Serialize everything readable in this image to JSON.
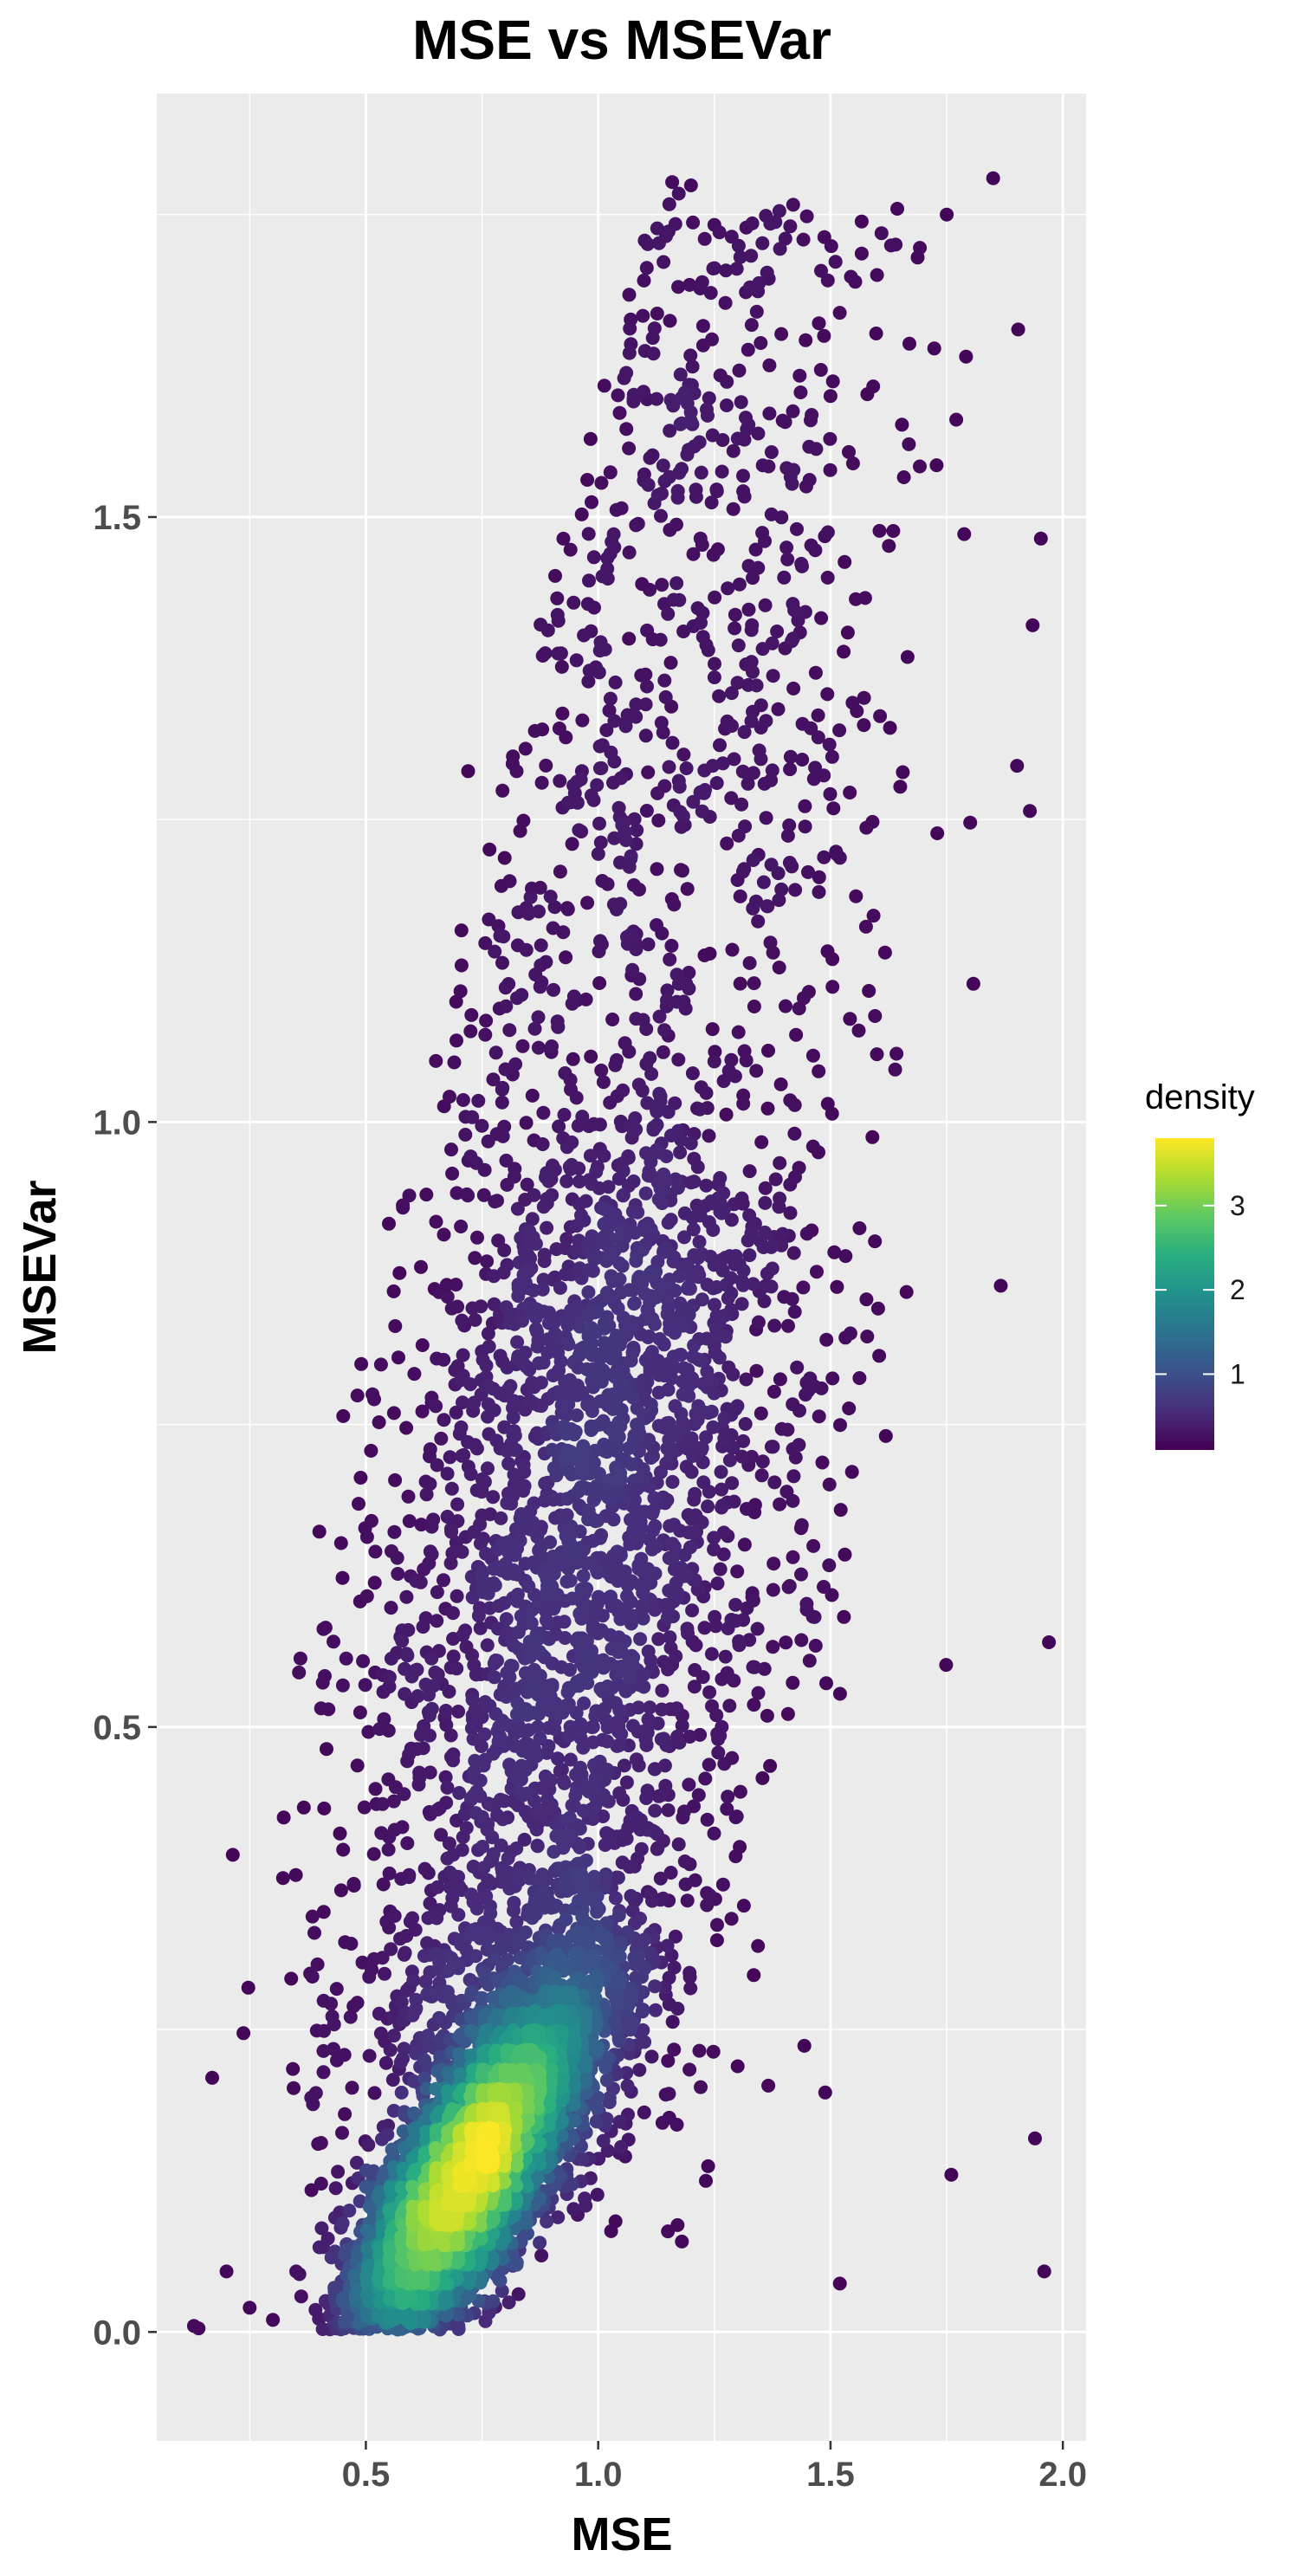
{
  "chart_data": {
    "type": "scatter",
    "title": "MSE vs MSEVar",
    "xlabel": "MSE",
    "ylabel": "MSEVar",
    "xlim": [
      0.05,
      2.05
    ],
    "ylim": [
      -0.09,
      1.85
    ],
    "x_ticks": [
      0.5,
      1.0,
      1.5,
      2.0
    ],
    "x_tick_labels": [
      "0.5",
      "1.0",
      "1.5",
      "2.0"
    ],
    "y_ticks": [
      0.0,
      0.5,
      1.0,
      1.5
    ],
    "y_tick_labels": [
      "0.0",
      "0.5",
      "1.0",
      "1.5"
    ],
    "grid": true,
    "color_by": "density",
    "colorscale": "viridis",
    "legend": {
      "title": "density",
      "position": "right",
      "range": [
        0.1,
        3.8
      ],
      "ticks": [
        1,
        2,
        3
      ],
      "tick_labels": [
        "1",
        "2",
        "3"
      ]
    },
    "n_points": 8000,
    "distribution": {
      "description_fit": "bivariate cloud, dense core near MSE 0.72 / MSEVar 0.13, spreading upward and rightward",
      "core_mean": [
        0.72,
        0.13
      ],
      "max_mse": 1.97,
      "max_msevar": 1.78
    },
    "points_sample": [
      [
        0.13,
        0.005
      ],
      [
        0.14,
        0.003
      ],
      [
        0.2,
        0.05
      ],
      [
        0.25,
        0.02
      ],
      [
        0.3,
        0.01
      ],
      [
        0.35,
        0.05
      ],
      [
        0.4,
        0.07
      ],
      [
        0.45,
        0.09
      ],
      [
        0.5,
        0.12
      ],
      [
        0.55,
        0.1
      ],
      [
        0.6,
        0.12
      ],
      [
        0.65,
        0.14
      ],
      [
        0.7,
        0.13
      ],
      [
        0.72,
        0.12
      ],
      [
        0.75,
        0.15
      ],
      [
        0.8,
        0.2
      ],
      [
        0.85,
        0.25
      ],
      [
        0.9,
        0.3
      ],
      [
        0.95,
        0.35
      ],
      [
        1.0,
        0.45
      ],
      [
        1.05,
        0.55
      ],
      [
        1.1,
        0.7
      ],
      [
        1.15,
        0.8
      ],
      [
        1.2,
        0.95
      ],
      [
        1.25,
        1.05
      ],
      [
        1.3,
        1.2
      ],
      [
        1.35,
        1.3
      ],
      [
        1.4,
        1.45
      ],
      [
        1.5,
        1.6
      ],
      [
        1.6,
        1.7
      ],
      [
        1.75,
        1.75
      ],
      [
        1.85,
        1.78
      ],
      [
        0.49,
        0.8
      ],
      [
        0.56,
        0.86
      ],
      [
        0.72,
        1.29
      ],
      [
        1.97,
        0.57
      ],
      [
        1.96,
        0.05
      ],
      [
        1.94,
        0.16
      ],
      [
        1.76,
        0.13
      ],
      [
        1.52,
        0.04
      ]
    ]
  }
}
